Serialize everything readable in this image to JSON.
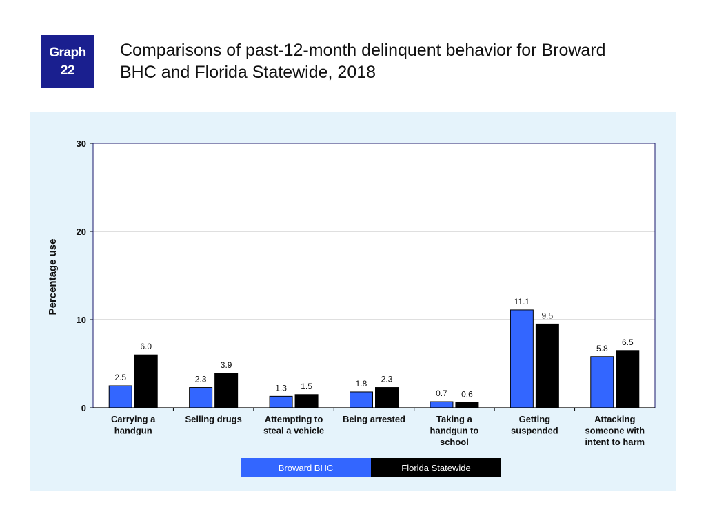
{
  "header": {
    "badge_line1": "Graph",
    "badge_line2": "22",
    "title_line1": "Comparisons of past-12-month delinquent behavior for Broward",
    "title_line2": "BHC and Florida Statewide, 2018"
  },
  "colors": {
    "badge": "#1a1f8f",
    "panel_background": "#e5f3fb",
    "broward": "#3366ff",
    "florida": "#000000"
  },
  "chart_data": {
    "type": "bar",
    "title": "",
    "xlabel": "",
    "ylabel": "Percentage use",
    "ylim": [
      0,
      30
    ],
    "yticks": [
      0,
      10,
      20,
      30
    ],
    "grid": true,
    "legend_position": "bottom",
    "categories": [
      [
        "Carrying a",
        "handgun"
      ],
      [
        "Selling drugs"
      ],
      [
        "Attempting to",
        "steal a vehicle"
      ],
      [
        "Being arrested"
      ],
      [
        "Taking a",
        "handgun to",
        "school"
      ],
      [
        "Getting",
        "suspended"
      ],
      [
        "Attacking",
        "someone with",
        "intent to harm"
      ]
    ],
    "series": [
      {
        "name": "Broward BHC",
        "color": "#3366ff",
        "values": [
          2.5,
          2.3,
          1.3,
          1.8,
          0.7,
          11.1,
          5.8
        ],
        "labels": [
          "2.5",
          "2.3",
          "1.3",
          "1.8",
          "0.7",
          "11.1",
          "5.8"
        ]
      },
      {
        "name": "Florida Statewide",
        "color": "#000000",
        "values": [
          6.0,
          3.9,
          1.5,
          2.3,
          0.6,
          9.5,
          6.5
        ],
        "labels": [
          "6.0",
          "3.9",
          "1.5",
          "2.3",
          "0.6",
          "9.5",
          "6.5"
        ]
      }
    ]
  }
}
